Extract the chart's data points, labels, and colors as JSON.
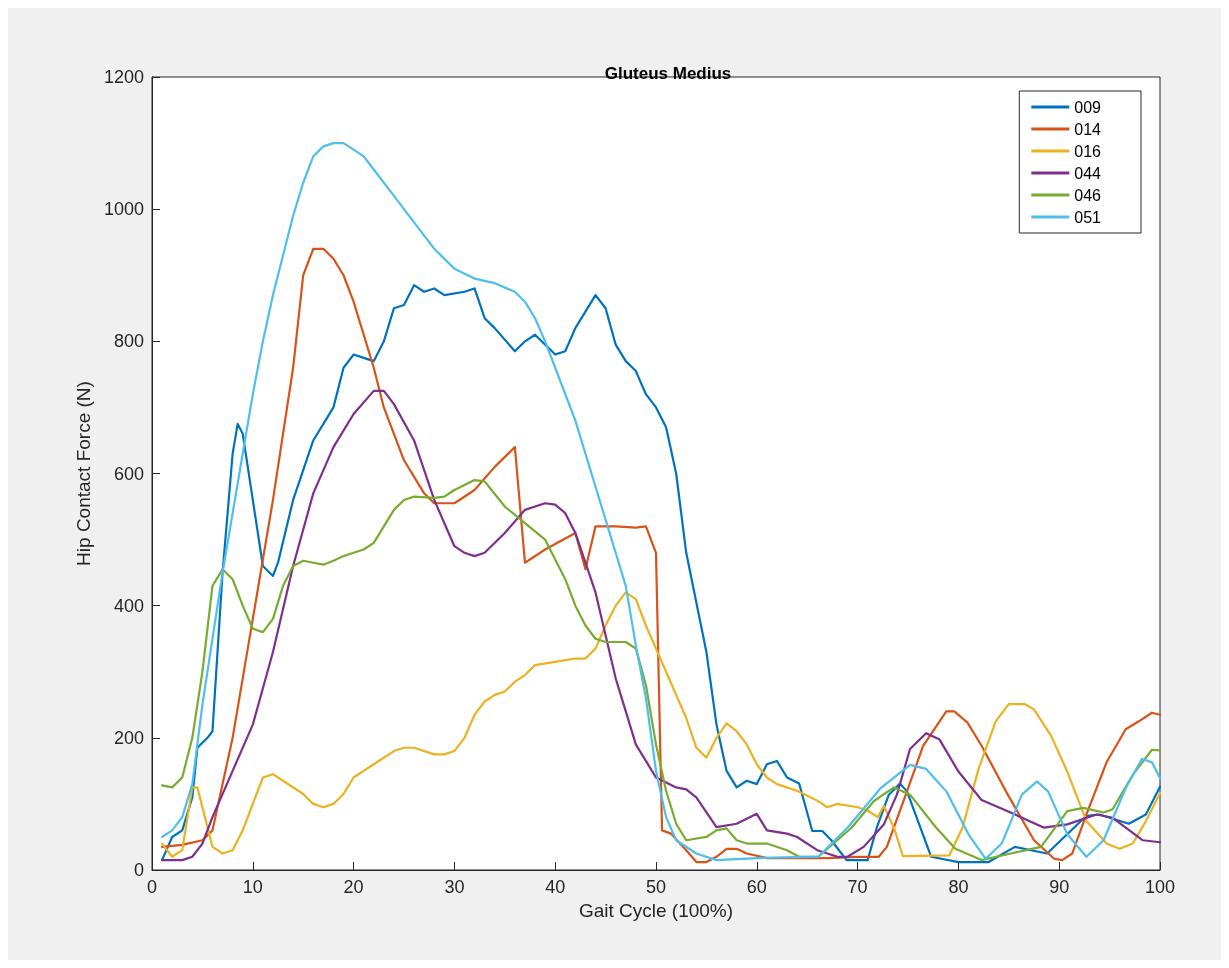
{
  "chart_data": {
    "type": "line",
    "title": "Gluteus Medius",
    "xlabel": "Gait Cycle (100%)",
    "ylabel": "Hip Contact Force (N)",
    "xlim": [
      0,
      100
    ],
    "xticks": [
      0,
      10,
      20,
      30,
      40,
      50,
      60,
      70,
      80,
      90,
      100
    ],
    "ylim": [
      0,
      1200
    ],
    "yticks": [
      0,
      200,
      400,
      600,
      800,
      1000,
      1200
    ],
    "grid": false,
    "legend": "top right",
    "marker": "none",
    "line_style": "solid",
    "series": [
      {
        "name": "009",
        "color": "#0072bd",
        "x": [
          1,
          2,
          3,
          4,
          4.5,
          5.5,
          6,
          7,
          8,
          8.5,
          9,
          10,
          11,
          12,
          12.5,
          14,
          16,
          18,
          19,
          20,
          21,
          22,
          23,
          24,
          25,
          26,
          27,
          28,
          29,
          31,
          32,
          33,
          34,
          36,
          37,
          38,
          40,
          41,
          42,
          44,
          45,
          46,
          47,
          48,
          49,
          50,
          51,
          52,
          53,
          55,
          56,
          57,
          58,
          59,
          60,
          61,
          62,
          63,
          64.2,
          65.5,
          66.5,
          67.4,
          68.9,
          71,
          71.9,
          73.1,
          74.2,
          74.9,
          77.3,
          80,
          83,
          85.6,
          88.8,
          92.7,
          94,
          96.9,
          98.6,
          100
        ],
        "values": [
          15,
          50,
          60,
          110,
          185,
          200,
          210,
          450,
          630,
          675,
          660,
          560,
          460,
          445,
          465,
          560,
          650,
          700,
          760,
          780,
          775,
          770,
          800,
          850,
          855,
          885,
          875,
          880,
          870,
          875,
          880,
          835,
          820,
          785,
          800,
          810,
          780,
          785,
          820,
          870,
          850,
          795,
          770,
          755,
          720,
          700,
          670,
          600,
          480,
          330,
          220,
          150,
          125,
          135,
          130,
          160,
          165,
          140,
          131,
          59,
          59,
          45,
          15,
          15,
          64,
          114,
          131,
          119,
          20,
          12,
          12,
          35,
          25,
          82,
          84,
          70,
          84,
          126
        ]
      },
      {
        "name": "014",
        "color": "#d95319",
        "x": [
          1,
          3,
          5,
          6,
          8,
          10,
          12,
          14,
          15,
          16,
          17,
          18,
          19,
          20,
          22,
          23,
          25,
          27,
          28,
          30,
          32,
          34,
          36,
          37,
          39,
          42,
          43,
          44,
          46,
          48,
          49,
          50,
          50.6,
          51.5,
          53,
          54,
          55,
          56,
          57,
          58,
          59,
          61,
          63,
          67,
          70,
          72.1,
          72.9,
          74.9,
          76.5,
          78.8,
          79.6,
          80.9,
          82.3,
          84.9,
          87.5,
          89.5,
          90.3,
          91.3,
          92.7,
          94.7,
          96.6,
          97.9,
          99.2,
          100
        ],
        "values": [
          35,
          38,
          45,
          60,
          200,
          380,
          560,
          760,
          900,
          940,
          940,
          925,
          900,
          860,
          760,
          700,
          620,
          570,
          555,
          555,
          575,
          610,
          640,
          465,
          485,
          510,
          455,
          520,
          520,
          518,
          520,
          480,
          60,
          55,
          30,
          12,
          12,
          20,
          32,
          32,
          25,
          18,
          18,
          18,
          20,
          20,
          35,
          119,
          188,
          240,
          240,
          223,
          188,
          114,
          45,
          17,
          15,
          25,
          84,
          163,
          213,
          225,
          238,
          235
        ]
      },
      {
        "name": "016",
        "color": "#edb120",
        "x": [
          1,
          2,
          3,
          4,
          4.5,
          5,
          6,
          7,
          8,
          9,
          10,
          11,
          12,
          13,
          15,
          16,
          17,
          18,
          19,
          20,
          21,
          22,
          24,
          25,
          26,
          28,
          29,
          30,
          31,
          32,
          33,
          34,
          35,
          36,
          37,
          38,
          40,
          42,
          43,
          44,
          45,
          46,
          47,
          48,
          49,
          50,
          51,
          52,
          53,
          54,
          55,
          56,
          57,
          58,
          59,
          60,
          61,
          62,
          64,
          66,
          67,
          68,
          70,
          71,
          72,
          72.6,
          73.6,
          74.5,
          79.1,
          80.4,
          82,
          83.7,
          85,
          86.6,
          87.5,
          89.2,
          90.8,
          92.7,
          94.7,
          96,
          97.3,
          98.6,
          100
        ],
        "values": [
          40,
          20,
          30,
          125,
          125,
          95,
          35,
          25,
          30,
          60,
          100,
          140,
          145,
          135,
          115,
          100,
          95,
          100,
          115,
          140,
          150,
          160,
          180,
          185,
          185,
          175,
          175,
          180,
          200,
          235,
          255,
          265,
          270,
          285,
          295,
          310,
          315,
          320,
          320,
          335,
          370,
          400,
          420,
          410,
          370,
          335,
          300,
          265,
          230,
          185,
          170,
          200,
          222,
          210,
          190,
          160,
          140,
          130,
          120,
          105,
          95,
          100,
          95,
          90,
          80,
          97,
          64,
          21,
          22,
          64,
          153,
          225,
          251,
          251,
          243,
          203,
          149,
          74,
          40,
          32,
          40,
          74,
          116
        ]
      },
      {
        "name": "044",
        "color": "#7e2f8e",
        "x": [
          1,
          3,
          4,
          5,
          6,
          8,
          10,
          12,
          14,
          16,
          18,
          20,
          22,
          23,
          24,
          26,
          28,
          30,
          31,
          32,
          33,
          35,
          37,
          39,
          40,
          41,
          42,
          44,
          46,
          48,
          50,
          52,
          53,
          54,
          56,
          58,
          60,
          61,
          63,
          64,
          66,
          68,
          69,
          70.6,
          72.6,
          73.9,
          75.2,
          76.8,
          78.1,
          80,
          82.3,
          84.9,
          88.5,
          90.8,
          93.7,
          95.3,
          98.3,
          100
        ],
        "values": [
          15,
          15,
          20,
          40,
          80,
          150,
          220,
          330,
          460,
          570,
          640,
          690,
          725,
          725,
          705,
          650,
          560,
          490,
          480,
          475,
          480,
          510,
          545,
          555,
          553,
          540,
          510,
          420,
          290,
          190,
          140,
          125,
          122,
          110,
          65,
          70,
          85,
          60,
          55,
          50,
          30,
          20,
          20,
          35,
          69,
          114,
          183,
          207,
          198,
          149,
          106,
          89,
          64,
          69,
          84,
          79,
          45,
          42
        ]
      },
      {
        "name": "046",
        "color": "#77ac30",
        "x": [
          1,
          2,
          3,
          4,
          5,
          6,
          7,
          8,
          9,
          10,
          11,
          12,
          13,
          14,
          15,
          16,
          17,
          18,
          19,
          20,
          21,
          22,
          23,
          24,
          25,
          26,
          28,
          29,
          30,
          32,
          33,
          35,
          37,
          39,
          40,
          41,
          42,
          43,
          44,
          45,
          47,
          48,
          49,
          50,
          51,
          52,
          53,
          55,
          56,
          57,
          58,
          59,
          61,
          63,
          64.2,
          66.1,
          69.4,
          71.6,
          73.6,
          75.2,
          77.8,
          79.7,
          82.3,
          85.2,
          88.2,
          90.8,
          92.4,
          94.4,
          95.3,
          97.3,
          99.2,
          100
        ],
        "values": [
          128,
          125,
          140,
          200,
          300,
          430,
          455,
          440,
          400,
          365,
          360,
          380,
          430,
          460,
          468,
          465,
          462,
          468,
          475,
          480,
          485,
          495,
          520,
          545,
          560,
          565,
          563,
          565,
          575,
          590,
          588,
          550,
          525,
          500,
          470,
          440,
          400,
          370,
          350,
          345,
          345,
          335,
          280,
          190,
          120,
          70,
          45,
          50,
          60,
          63,
          45,
          40,
          40,
          30,
          20,
          20,
          64,
          104,
          125,
          114,
          64,
          32,
          15,
          25,
          35,
          89,
          94,
          87,
          92,
          144,
          182,
          181
        ]
      },
      {
        "name": "051",
        "color": "#4dbeee",
        "x": [
          1,
          2,
          3,
          4,
          5,
          6,
          7,
          8,
          9,
          10,
          11,
          12,
          13,
          14,
          15,
          16,
          17,
          18,
          19,
          20,
          21,
          22,
          24,
          26,
          28,
          30,
          32,
          34,
          36,
          37,
          38,
          39,
          40,
          42,
          44,
          46,
          47,
          48,
          49,
          50,
          51,
          52,
          54,
          56,
          60,
          65,
          66.1,
          69,
          72.3,
          75.2,
          76.8,
          78.8,
          81,
          82.7,
          84.3,
          86.3,
          87.8,
          88.9,
          90.8,
          92.7,
          94.4,
          96.6,
          98.2,
          99.2,
          100
        ],
        "values": [
          50,
          60,
          80,
          130,
          250,
          350,
          450,
          540,
          630,
          720,
          800,
          870,
          930,
          990,
          1040,
          1080,
          1095,
          1100,
          1100,
          1090,
          1080,
          1060,
          1020,
          980,
          940,
          910,
          895,
          888,
          875,
          860,
          835,
          800,
          760,
          680,
          580,
          480,
          430,
          340,
          260,
          150,
          80,
          45,
          25,
          15,
          18,
          20,
          20,
          64,
          124,
          159,
          153,
          119,
          54,
          17,
          40,
          114,
          134,
          119,
          54,
          20,
          45,
          124,
          168,
          163,
          139
        ]
      }
    ]
  }
}
